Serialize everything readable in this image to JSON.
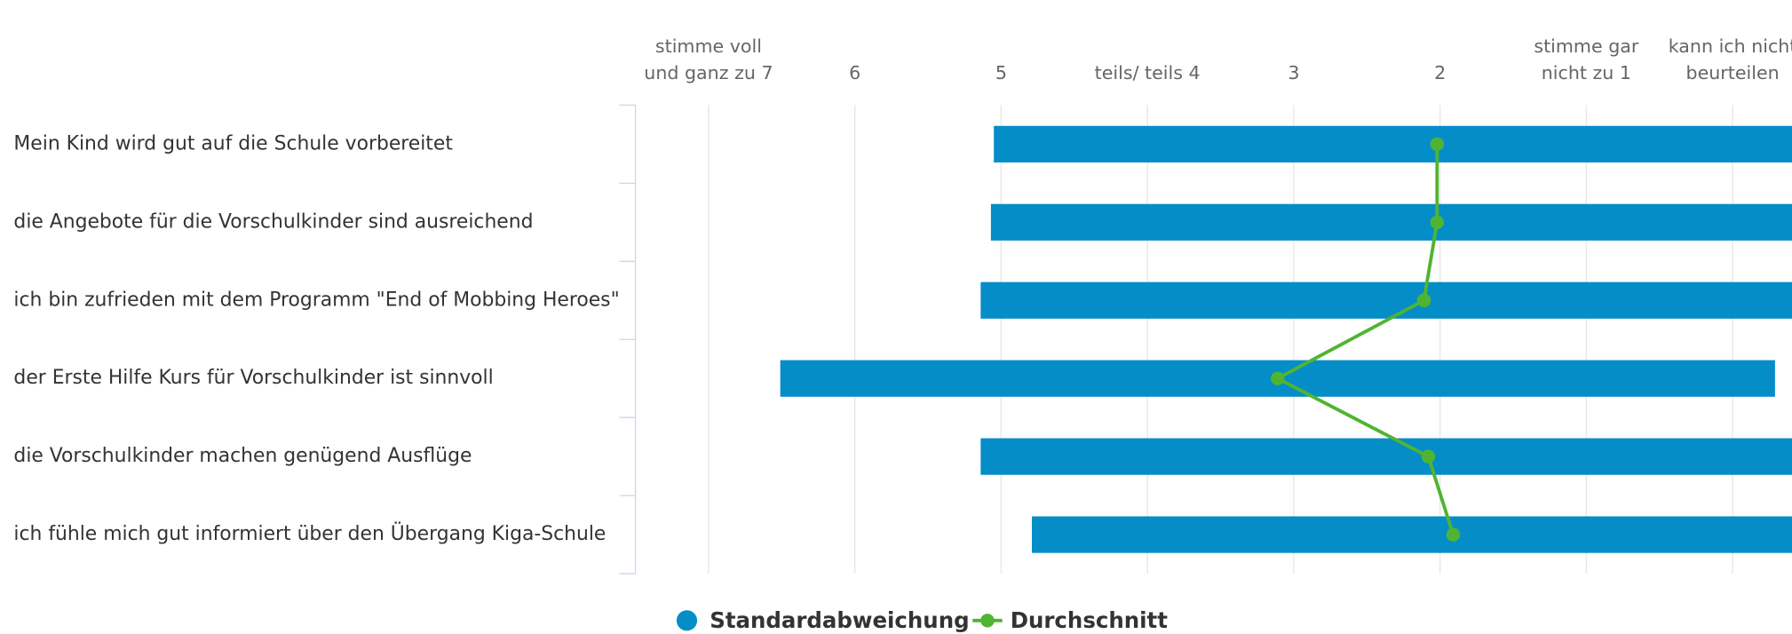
{
  "chart_data": {
    "type": "bar",
    "orientation": "horizontal",
    "categories": [
      "Mein Kind wird gut auf die Schule vorbereitet",
      "die Angebote für die Vorschulkinder sind ausreichend",
      "ich bin zufrieden mit dem Programm \"End of Mobbing Heroes\"",
      "der Erste Hilfe Kurs für Vorschulkinder ist sinnvoll",
      "die Vorschulkinder machen genügend Ausflüge",
      "ich fühle mich gut informiert über den Übergang Kiga-Schule"
    ],
    "series": [
      {
        "name": "Standardabweichung",
        "color": "#058dc7",
        "values": [
          3.03,
          3.05,
          3.03,
          3.4,
          3.06,
          2.88
        ]
      },
      {
        "name": "Durchschnitt",
        "color": "#50b432",
        "values": [
          2.02,
          2.02,
          2.11,
          3.11,
          2.08,
          1.91
        ]
      }
    ],
    "xlim": [
      7.5,
      -0.5
    ],
    "xticks": [
      {
        "value": 7,
        "label": "stimme voll und ganz zu 7"
      },
      6,
      5,
      {
        "value": 4,
        "label": "teils/ teils 4"
      },
      3,
      2,
      {
        "value": 1,
        "label": "stimme gar nicht zu 1"
      },
      {
        "value": 0,
        "label": "kann ich nicht beurteilen"
      }
    ],
    "grid": true,
    "legend": "bottom"
  }
}
